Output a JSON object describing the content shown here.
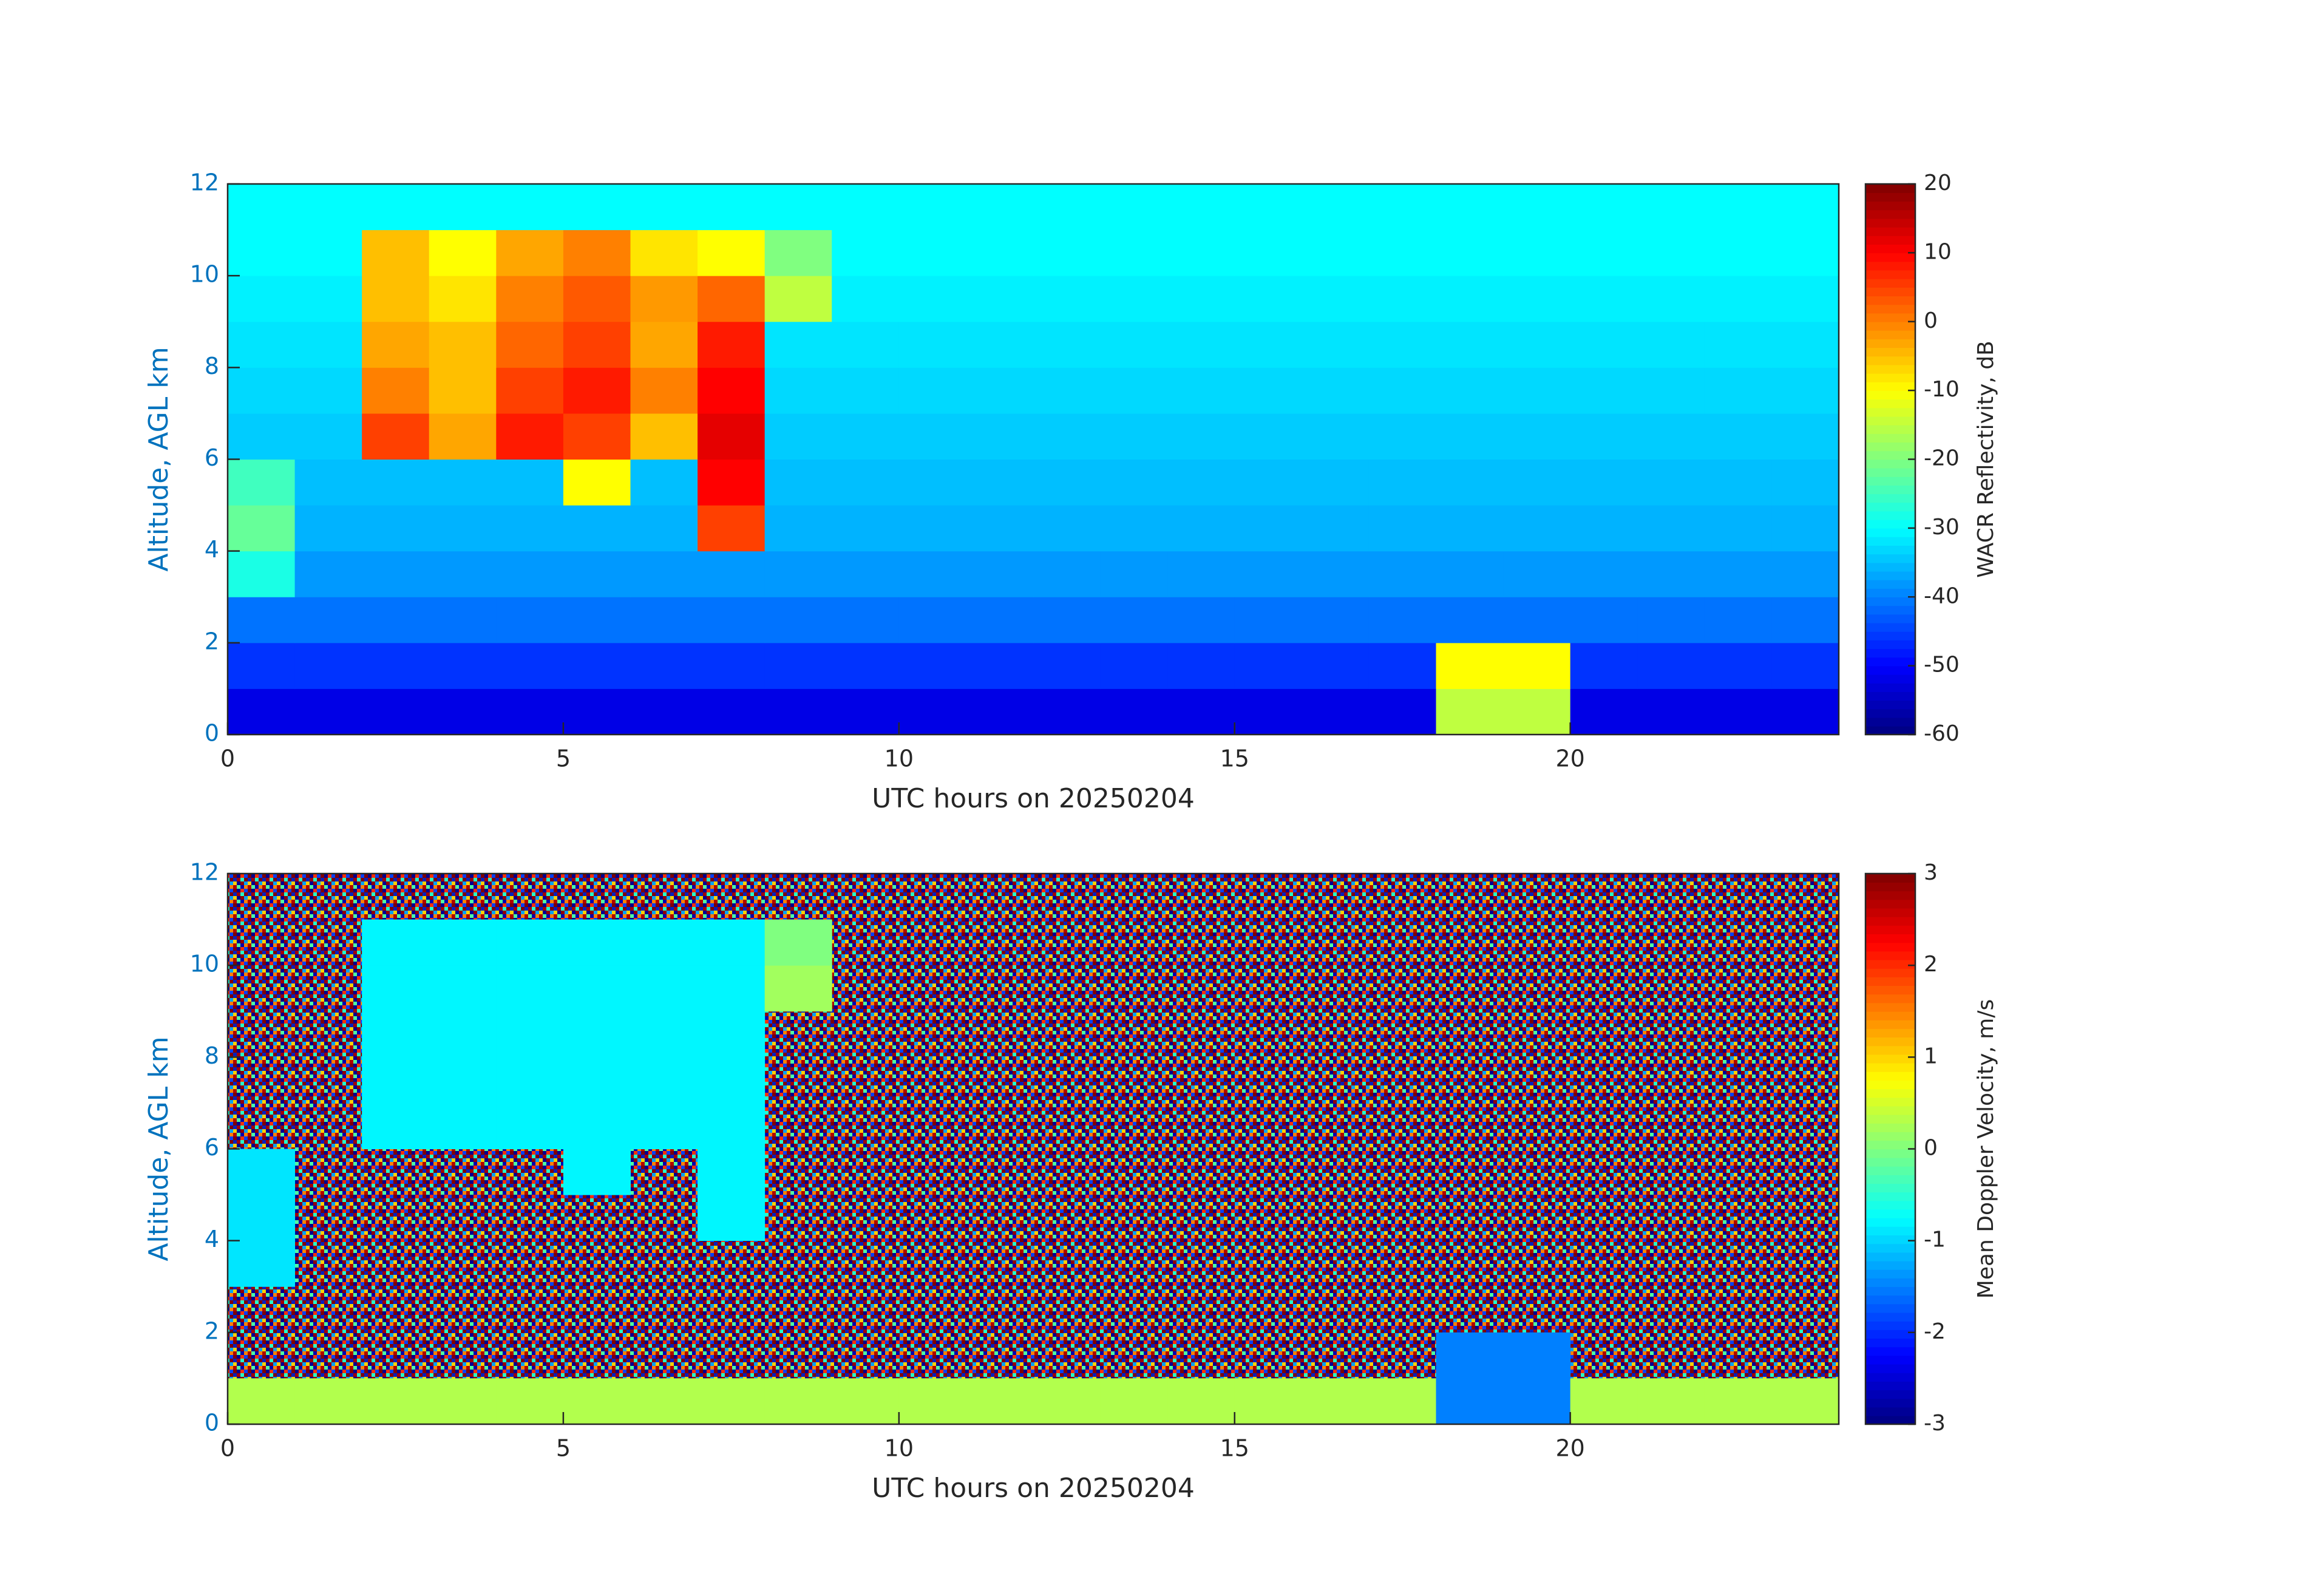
{
  "chart_data": [
    {
      "type": "heatmap",
      "colormap": "jet",
      "xlabel": "UTC hours on 20250204",
      "ylabel": "Altitude, AGL km",
      "clabel": "WACR Reflectivity, dB",
      "xlim": [
        0,
        24
      ],
      "ylim": [
        0,
        12
      ],
      "xticks": [
        0,
        5,
        10,
        15,
        20
      ],
      "yticks": [
        0,
        2,
        4,
        6,
        8,
        10,
        12
      ],
      "clim": [
        -60,
        20
      ],
      "cticks": [
        -60,
        -50,
        -40,
        -30,
        -20,
        -10,
        0,
        10,
        20
      ],
      "x": [
        0.5,
        1.5,
        2.5,
        3.5,
        4.5,
        5.5,
        6.5,
        7.5,
        8.5,
        9.5,
        10.5,
        11.5,
        12.5,
        13.5,
        14.5,
        15.5,
        16.5,
        17.5,
        18.5,
        19.5,
        20.5,
        21.5,
        22.5,
        23.5
      ],
      "y": [
        0.5,
        1.5,
        2.5,
        3.5,
        4.5,
        5.5,
        6.5,
        7.5,
        8.5,
        9.5,
        10.5,
        11.5
      ],
      "z": [
        [
          -52,
          -52,
          -52,
          -52,
          -52,
          -52,
          -52,
          -52,
          -52,
          -52,
          -52,
          -52,
          -52,
          -52,
          -52,
          -52,
          -52,
          -52,
          -15,
          -15,
          -52,
          -52,
          -52,
          -52
        ],
        [
          -46,
          -46,
          -46,
          -46,
          -46,
          -46,
          -46,
          -46,
          -46,
          -46,
          -46,
          -46,
          -46,
          -46,
          -46,
          -46,
          -46,
          -46,
          -10,
          -10,
          -46,
          -46,
          -46,
          -46
        ],
        [
          -41,
          -41,
          -41,
          -41,
          -41,
          -41,
          -41,
          -41,
          -41,
          -41,
          -41,
          -41,
          -41,
          -41,
          -41,
          -41,
          -41,
          -41,
          -41,
          -41,
          -41,
          -41,
          -41,
          -41
        ],
        [
          -28,
          -38,
          -38,
          -38,
          -38,
          -38,
          -38,
          -38,
          -38,
          -38,
          -38,
          -38,
          -38,
          -38,
          -38,
          -38,
          -38,
          -38,
          -38,
          -38,
          -38,
          -38,
          -38,
          -38
        ],
        [
          -22,
          -36,
          -36,
          -36,
          -36,
          -36,
          -36,
          5,
          -36,
          -36,
          -36,
          -36,
          -36,
          -36,
          -36,
          -36,
          -36,
          -36,
          -36,
          -36,
          -36,
          -36,
          -36,
          -36
        ],
        [
          -25,
          -35,
          -35,
          -35,
          -35,
          -10,
          -35,
          10,
          -35,
          -35,
          -35,
          -35,
          -35,
          -35,
          -35,
          -35,
          -35,
          -35,
          -35,
          -35,
          -35,
          -35,
          -35,
          -35
        ],
        [
          -34,
          -34,
          5,
          -3,
          8,
          5,
          -5,
          12,
          -34,
          -34,
          -34,
          -34,
          -34,
          -34,
          -34,
          -34,
          -34,
          -34,
          -34,
          -34,
          -34,
          -34,
          -34,
          -34
        ],
        [
          -33,
          -33,
          0,
          -5,
          5,
          8,
          0,
          10,
          -33,
          -33,
          -33,
          -33,
          -33,
          -33,
          -33,
          -33,
          -33,
          -33,
          -33,
          -33,
          -33,
          -33,
          -33,
          -33
        ],
        [
          -32,
          -32,
          -3,
          -5,
          2,
          5,
          -3,
          8,
          -32,
          -32,
          -32,
          -32,
          -32,
          -32,
          -32,
          -32,
          -32,
          -32,
          -32,
          -32,
          -32,
          -32,
          -32,
          -32
        ],
        [
          -31,
          -31,
          -5,
          -8,
          0,
          3,
          -2,
          2,
          -15,
          -31,
          -31,
          -31,
          -31,
          -31,
          -31,
          -31,
          -31,
          -31,
          -31,
          -31,
          -31,
          -31,
          -31,
          -31
        ],
        [
          -30,
          -30,
          -5,
          -10,
          -3,
          0,
          -8,
          -10,
          -20,
          -30,
          -30,
          -30,
          -30,
          -30,
          -30,
          -30,
          -30,
          -30,
          -30,
          -30,
          -30,
          -30,
          -30,
          -30
        ],
        [
          -30,
          -30,
          -30,
          -30,
          -30,
          -30,
          -30,
          -30,
          -30,
          -30,
          -30,
          -30,
          -30,
          -30,
          -30,
          -30,
          -30,
          -30,
          -30,
          -30,
          -30,
          -30,
          -30,
          -30
        ]
      ]
    },
    {
      "type": "heatmap",
      "colormap": "jet",
      "xlabel": "UTC hours on 20250204",
      "ylabel": "Altitude, AGL km",
      "clabel": "Mean Doppler Velocity, m/s",
      "xlim": [
        0,
        24
      ],
      "ylim": [
        0,
        12
      ],
      "xticks": [
        0,
        5,
        10,
        15,
        20
      ],
      "yticks": [
        0,
        2,
        4,
        6,
        8,
        10,
        12
      ],
      "clim": [
        -3,
        3
      ],
      "cticks": [
        -3,
        -2,
        -1,
        0,
        1,
        2,
        3
      ],
      "x": [
        0.5,
        1.5,
        2.5,
        3.5,
        4.5,
        5.5,
        6.5,
        7.5,
        8.5,
        9.5,
        10.5,
        11.5,
        12.5,
        13.5,
        14.5,
        15.5,
        16.5,
        17.5,
        18.5,
        19.5,
        20.5,
        21.5,
        22.5,
        23.5
      ],
      "y": [
        0.5,
        1.5,
        2.5,
        3.5,
        4.5,
        5.5,
        6.5,
        7.5,
        8.5,
        9.5,
        10.5,
        11.5
      ],
      "z": [
        [
          0.3,
          0.3,
          0.3,
          0.3,
          0.3,
          0.3,
          0.3,
          0.3,
          0.3,
          0.3,
          0.3,
          0.3,
          0.3,
          0.3,
          0.3,
          0.3,
          0.3,
          0.3,
          -1.5,
          -1.5,
          0.3,
          0.3,
          0.3,
          0.3
        ],
        [
          null,
          null,
          null,
          null,
          null,
          null,
          null,
          null,
          null,
          null,
          null,
          null,
          null,
          null,
          null,
          null,
          null,
          null,
          -1.5,
          -1.5,
          null,
          null,
          null,
          null
        ],
        [
          null,
          null,
          null,
          null,
          null,
          null,
          null,
          null,
          null,
          null,
          null,
          null,
          null,
          null,
          null,
          null,
          null,
          null,
          null,
          null,
          null,
          null,
          null,
          null
        ],
        [
          -0.9,
          null,
          null,
          null,
          null,
          null,
          null,
          null,
          null,
          null,
          null,
          null,
          null,
          null,
          null,
          null,
          null,
          null,
          null,
          null,
          null,
          null,
          null,
          null
        ],
        [
          -0.9,
          null,
          null,
          null,
          null,
          null,
          null,
          -0.8,
          null,
          null,
          null,
          null,
          null,
          null,
          null,
          null,
          null,
          null,
          null,
          null,
          null,
          null,
          null,
          null
        ],
        [
          -0.9,
          null,
          null,
          null,
          null,
          -0.8,
          null,
          -0.8,
          null,
          null,
          null,
          null,
          null,
          null,
          null,
          null,
          null,
          null,
          null,
          null,
          null,
          null,
          null,
          null
        ],
        [
          null,
          null,
          -0.8,
          -0.8,
          -0.8,
          -0.8,
          -0.8,
          -0.8,
          null,
          null,
          null,
          null,
          null,
          null,
          null,
          null,
          null,
          null,
          null,
          null,
          null,
          null,
          null,
          null
        ],
        [
          null,
          null,
          -0.8,
          -0.8,
          -0.8,
          -0.8,
          -0.8,
          -0.8,
          null,
          null,
          null,
          null,
          null,
          null,
          null,
          null,
          null,
          null,
          null,
          null,
          null,
          null,
          null,
          null
        ],
        [
          null,
          null,
          -0.8,
          -0.8,
          -0.8,
          -0.8,
          -0.8,
          -0.8,
          null,
          null,
          null,
          null,
          null,
          null,
          null,
          null,
          null,
          null,
          null,
          null,
          null,
          null,
          null,
          null
        ],
        [
          null,
          null,
          -0.8,
          -0.8,
          -0.8,
          -0.8,
          -0.8,
          -0.8,
          0.2,
          null,
          null,
          null,
          null,
          null,
          null,
          null,
          null,
          null,
          null,
          null,
          null,
          null,
          null,
          null
        ],
        [
          null,
          null,
          -0.8,
          -0.8,
          -0.8,
          -0.8,
          -0.8,
          -0.8,
          0,
          null,
          null,
          null,
          null,
          null,
          null,
          null,
          null,
          null,
          null,
          null,
          null,
          null,
          null,
          null
        ],
        [
          null,
          null,
          null,
          null,
          null,
          null,
          null,
          null,
          null,
          null,
          null,
          null,
          null,
          null,
          null,
          null,
          null,
          null,
          null,
          null,
          null,
          null,
          null,
          null
        ]
      ]
    }
  ]
}
